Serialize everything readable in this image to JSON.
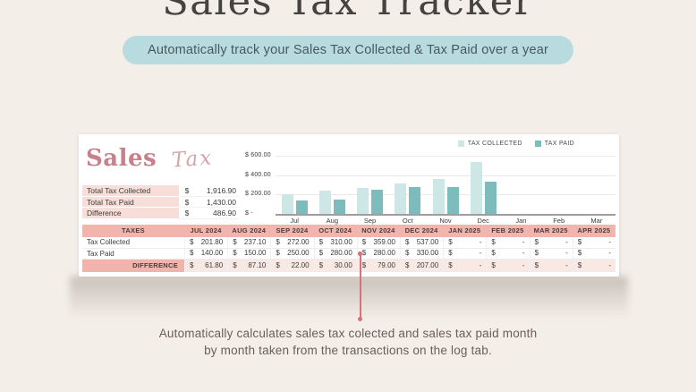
{
  "header": {
    "title": "Sales Tax Tracker",
    "subtitle": "Automatically track your Sales Tax Collected & Tax Paid over a year"
  },
  "spreadsheet": {
    "brand": {
      "word1": "Sales",
      "word2": "Tax"
    },
    "summary": {
      "rows": [
        {
          "label": "Total Tax Collected",
          "currency": "$",
          "value": "1,916.90"
        },
        {
          "label": "Total Tax Paid",
          "currency": "$",
          "value": "1,430.00"
        },
        {
          "label": "Difference",
          "currency": "$",
          "value": "486.90"
        }
      ]
    },
    "table": {
      "header_label": "TAXES",
      "currency": "$",
      "months": [
        "JUL 2024",
        "AUG 2024",
        "SEP 2024",
        "OCT 2024",
        "NOV 2024",
        "DEC 2024",
        "JAN 2025",
        "FEB 2025",
        "MAR 2025",
        "APR 2025"
      ],
      "rows": [
        {
          "label": "Tax Collected",
          "values": [
            "201.80",
            "237.10",
            "272.00",
            "310.00",
            "359.00",
            "537.00",
            "-",
            "-",
            "-",
            "-"
          ]
        },
        {
          "label": "Tax Paid",
          "values": [
            "140.00",
            "150.00",
            "250.00",
            "280.00",
            "280.00",
            "330.00",
            "-",
            "-",
            "-",
            "-"
          ]
        }
      ],
      "footer": {
        "label": "DIFFERENCE",
        "values": [
          "61.80",
          "87.10",
          "22.00",
          "30.00",
          "79.00",
          "207.00",
          "-",
          "-",
          "-",
          "-"
        ]
      }
    }
  },
  "chart_data": {
    "type": "bar",
    "categories": [
      "Jul",
      "Aug",
      "Sep",
      "Oct",
      "Nov",
      "Dec",
      "Jan",
      "Feb",
      "Mar"
    ],
    "series": [
      {
        "name": "TAX COLLECTED",
        "color": "#cde6e6",
        "values": [
          201.8,
          237.1,
          272.0,
          310.0,
          359.0,
          537.0,
          0,
          0,
          0
        ]
      },
      {
        "name": "TAX PAID",
        "color": "#7dbcbc",
        "values": [
          140.0,
          150.0,
          250.0,
          280.0,
          280.0,
          330.0,
          0,
          0,
          0
        ]
      }
    ],
    "ylim": [
      0,
      600
    ],
    "ytick_values": [
      600,
      400,
      200,
      0
    ],
    "ytick_labels": [
      "$ 600.00",
      "$ 400.00",
      "$ 200.00",
      "$ -"
    ],
    "grid": true,
    "legend_position": "top-right"
  },
  "annotation": {
    "caption_line1": "Automatically calculates sales tax colected and sales tax paid month",
    "caption_line2": "by month taken from the transactions on the log tab."
  },
  "colors": {
    "page_bg": "#f3eee8",
    "pill_bg": "#b8dbe0",
    "card_bg": "#ffffff",
    "table_header_bg": "#f1b5ae",
    "summary_label_bg": "#f8ded8",
    "footer_label_bg": "#efb5ad",
    "footer_row_bg": "#f9e9e5",
    "teal_light": "#cde6e6",
    "teal_dark": "#7dbcbc",
    "brand_pink": "#c8818b",
    "arrow": "#d4737b"
  }
}
